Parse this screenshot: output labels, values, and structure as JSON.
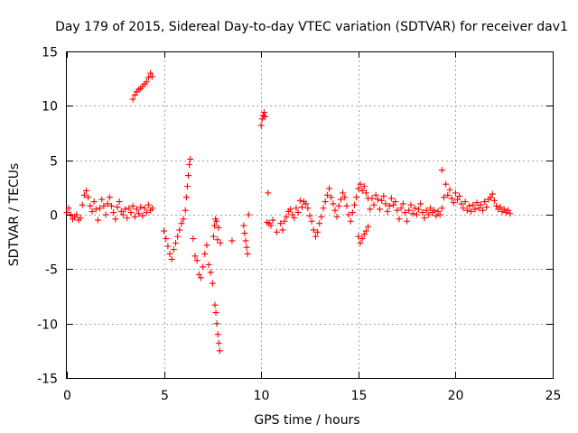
{
  "chart_data": {
    "type": "scatter",
    "title": "Day 179 of 2015, Sidereal Day-to-day VTEC variation (SDTVAR) for receiver dav1",
    "xlabel": "GPS time / hours",
    "ylabel": "SDTVAR / TECUs",
    "xlim": [
      0,
      25
    ],
    "ylim": [
      -15,
      15
    ],
    "xticks": [
      "0",
      "5",
      "10",
      "15",
      "20",
      "25"
    ],
    "yticks": [
      "15",
      "10",
      "5",
      "0",
      "-5",
      "-10",
      "-15"
    ],
    "xtick_values": [
      0,
      5,
      10,
      15,
      20,
      25
    ],
    "ytick_values": [
      15,
      10,
      5,
      0,
      -5,
      -10,
      -15
    ],
    "grid": true,
    "marker": "+",
    "color": "#ff0000",
    "series": [
      {
        "name": "dav1",
        "points": [
          [
            0.0,
            0.2
          ],
          [
            0.1,
            0.6
          ],
          [
            0.2,
            0.0
          ],
          [
            0.3,
            -0.4
          ],
          [
            0.4,
            -0.2
          ],
          [
            0.5,
            0.0
          ],
          [
            0.6,
            -0.5
          ],
          [
            0.7,
            -0.3
          ],
          [
            0.8,
            0.9
          ],
          [
            0.9,
            1.8
          ],
          [
            1.0,
            2.2
          ],
          [
            1.1,
            1.6
          ],
          [
            1.2,
            0.8
          ],
          [
            1.3,
            0.3
          ],
          [
            1.4,
            1.2
          ],
          [
            1.5,
            0.5
          ],
          [
            1.6,
            -0.5
          ],
          [
            1.7,
            0.6
          ],
          [
            1.8,
            1.4
          ],
          [
            1.9,
            0.8
          ],
          [
            2.0,
            0.0
          ],
          [
            2.1,
            1.0
          ],
          [
            2.2,
            1.6
          ],
          [
            2.3,
            0.8
          ],
          [
            2.4,
            0.2
          ],
          [
            2.5,
            -0.4
          ],
          [
            2.6,
            0.7
          ],
          [
            2.7,
            1.2
          ],
          [
            2.8,
            0.3
          ],
          [
            2.9,
            0.0
          ],
          [
            3.0,
            0.5
          ],
          [
            3.1,
            -0.3
          ],
          [
            3.2,
            0.6
          ],
          [
            3.3,
            0.2
          ],
          [
            3.4,
            0.8
          ],
          [
            3.5,
            -0.2
          ],
          [
            3.6,
            0.5
          ],
          [
            3.7,
            0.1
          ],
          [
            3.8,
            0.7
          ],
          [
            3.9,
            -0.1
          ],
          [
            4.0,
            0.6
          ],
          [
            4.1,
            0.2
          ],
          [
            4.2,
            0.9
          ],
          [
            4.3,
            0.4
          ],
          [
            4.4,
            0.6
          ],
          [
            3.4,
            10.6
          ],
          [
            3.5,
            11.0
          ],
          [
            3.6,
            11.3
          ],
          [
            3.7,
            11.5
          ],
          [
            3.8,
            11.6
          ],
          [
            3.9,
            11.8
          ],
          [
            4.0,
            12.0
          ],
          [
            4.1,
            12.2
          ],
          [
            4.2,
            12.6
          ],
          [
            4.3,
            13.0
          ],
          [
            4.4,
            12.7
          ],
          [
            5.0,
            -1.5
          ],
          [
            5.1,
            -2.2
          ],
          [
            5.2,
            -2.9
          ],
          [
            5.3,
            -3.6
          ],
          [
            5.4,
            -4.1
          ],
          [
            5.5,
            -3.2
          ],
          [
            5.6,
            -2.6
          ],
          [
            5.7,
            -2.0
          ],
          [
            5.8,
            -1.4
          ],
          [
            5.9,
            -0.8
          ],
          [
            6.0,
            -0.4
          ],
          [
            6.1,
            0.4
          ],
          [
            6.15,
            1.6
          ],
          [
            6.2,
            2.6
          ],
          [
            6.25,
            3.6
          ],
          [
            6.3,
            4.6
          ],
          [
            6.35,
            5.1
          ],
          [
            6.5,
            -2.2
          ],
          [
            6.6,
            -3.8
          ],
          [
            6.7,
            -4.2
          ],
          [
            6.8,
            -5.5
          ],
          [
            6.9,
            -5.8
          ],
          [
            7.0,
            -4.8
          ],
          [
            7.1,
            -3.6
          ],
          [
            7.2,
            -2.8
          ],
          [
            7.3,
            -4.6
          ],
          [
            7.4,
            -5.3
          ],
          [
            7.5,
            -6.3
          ],
          [
            7.55,
            -2.0
          ],
          [
            7.6,
            -1.0
          ],
          [
            7.65,
            -0.4
          ],
          [
            7.7,
            -0.6
          ],
          [
            7.75,
            -2.3
          ],
          [
            7.8,
            -1.2
          ],
          [
            7.9,
            -2.6
          ],
          [
            7.62,
            -8.3
          ],
          [
            7.67,
            -9.0
          ],
          [
            7.72,
            -10.0
          ],
          [
            7.77,
            -11.0
          ],
          [
            7.82,
            -11.8
          ],
          [
            7.87,
            -12.5
          ],
          [
            8.5,
            -2.4
          ],
          [
            9.1,
            -1.0
          ],
          [
            9.15,
            -1.7
          ],
          [
            9.2,
            -2.4
          ],
          [
            9.25,
            -3.0
          ],
          [
            9.3,
            -3.6
          ],
          [
            9.35,
            0.0
          ],
          [
            10.0,
            8.2
          ],
          [
            10.05,
            8.8
          ],
          [
            10.1,
            9.1
          ],
          [
            10.15,
            9.4
          ],
          [
            10.2,
            9.0
          ],
          [
            10.3,
            -0.7
          ],
          [
            10.35,
            2.0
          ],
          [
            10.4,
            -0.8
          ],
          [
            10.5,
            -1.0
          ],
          [
            10.6,
            -0.5
          ],
          [
            10.8,
            -1.6
          ],
          [
            11.0,
            -0.8
          ],
          [
            11.1,
            -1.4
          ],
          [
            11.2,
            -0.6
          ],
          [
            11.3,
            -0.2
          ],
          [
            11.4,
            0.3
          ],
          [
            11.5,
            0.5
          ],
          [
            11.6,
            0.0
          ],
          [
            11.7,
            -0.3
          ],
          [
            11.8,
            0.6
          ],
          [
            11.9,
            0.2
          ],
          [
            12.0,
            1.3
          ],
          [
            12.1,
            0.7
          ],
          [
            12.2,
            1.2
          ],
          [
            12.3,
            1.0
          ],
          [
            12.4,
            0.6
          ],
          [
            12.5,
            -0.1
          ],
          [
            12.6,
            -0.6
          ],
          [
            12.7,
            -1.4
          ],
          [
            12.8,
            -2.0
          ],
          [
            12.9,
            -1.6
          ],
          [
            13.0,
            -0.8
          ],
          [
            13.1,
            -0.2
          ],
          [
            13.2,
            0.6
          ],
          [
            13.3,
            1.2
          ],
          [
            13.4,
            1.8
          ],
          [
            13.5,
            2.4
          ],
          [
            13.6,
            1.6
          ],
          [
            13.7,
            1.0
          ],
          [
            13.8,
            0.4
          ],
          [
            13.9,
            -0.2
          ],
          [
            14.0,
            0.8
          ],
          [
            14.1,
            1.4
          ],
          [
            14.2,
            2.0
          ],
          [
            14.3,
            1.6
          ],
          [
            14.4,
            0.8
          ],
          [
            14.5,
            0.0
          ],
          [
            14.6,
            -0.6
          ],
          [
            14.7,
            0.2
          ],
          [
            14.8,
            0.9
          ],
          [
            14.9,
            1.6
          ],
          [
            15.0,
            2.4
          ],
          [
            15.1,
            2.8
          ],
          [
            15.2,
            2.2
          ],
          [
            15.3,
            2.6
          ],
          [
            15.4,
            2.0
          ],
          [
            15.5,
            1.5
          ],
          [
            15.0,
            -2.0
          ],
          [
            15.1,
            -2.6
          ],
          [
            15.2,
            -2.2
          ],
          [
            15.3,
            -1.8
          ],
          [
            15.4,
            -1.5
          ],
          [
            15.5,
            -1.1
          ],
          [
            15.6,
            0.5
          ],
          [
            15.7,
            1.5
          ],
          [
            15.8,
            0.9
          ],
          [
            15.9,
            1.8
          ],
          [
            16.0,
            1.4
          ],
          [
            16.1,
            0.5
          ],
          [
            16.2,
            1.3
          ],
          [
            16.3,
            1.7
          ],
          [
            16.4,
            1.0
          ],
          [
            16.5,
            0.3
          ],
          [
            16.6,
            0.8
          ],
          [
            16.7,
            1.5
          ],
          [
            16.8,
            0.9
          ],
          [
            16.9,
            1.2
          ],
          [
            17.0,
            0.4
          ],
          [
            17.1,
            -0.4
          ],
          [
            17.2,
            0.6
          ],
          [
            17.3,
            1.0
          ],
          [
            17.4,
            0.2
          ],
          [
            17.5,
            -0.6
          ],
          [
            17.6,
            0.4
          ],
          [
            17.7,
            0.9
          ],
          [
            17.8,
            0.1
          ],
          [
            17.9,
            0.6
          ],
          [
            18.0,
            0.0
          ],
          [
            18.1,
            0.5
          ],
          [
            18.2,
            1.0
          ],
          [
            18.3,
            0.2
          ],
          [
            18.4,
            -0.3
          ],
          [
            18.5,
            0.4
          ],
          [
            18.6,
            0.0
          ],
          [
            18.7,
            0.6
          ],
          [
            18.8,
            0.2
          ],
          [
            18.9,
            0.4
          ],
          [
            19.0,
            -0.1
          ],
          [
            19.1,
            0.3
          ],
          [
            19.2,
            0.0
          ],
          [
            19.3,
            0.6
          ],
          [
            19.4,
            1.6
          ],
          [
            19.5,
            2.8
          ],
          [
            19.6,
            1.8
          ],
          [
            19.7,
            2.3
          ],
          [
            19.8,
            1.5
          ],
          [
            19.9,
            1.1
          ],
          [
            20.0,
            2.0
          ],
          [
            20.1,
            1.4
          ],
          [
            20.2,
            1.7
          ],
          [
            20.3,
            1.0
          ],
          [
            20.4,
            0.6
          ],
          [
            20.5,
            1.2
          ],
          [
            20.6,
            0.4
          ],
          [
            20.7,
            0.8
          ],
          [
            20.8,
            0.3
          ],
          [
            20.9,
            0.9
          ],
          [
            21.0,
            0.5
          ],
          [
            21.1,
            1.1
          ],
          [
            21.2,
            0.6
          ],
          [
            21.3,
            0.9
          ],
          [
            21.4,
            0.4
          ],
          [
            21.5,
            1.2
          ],
          [
            21.6,
            0.7
          ],
          [
            21.7,
            1.4
          ],
          [
            21.8,
            1.6
          ],
          [
            21.9,
            1.9
          ],
          [
            22.0,
            1.3
          ],
          [
            22.1,
            0.8
          ],
          [
            22.2,
            0.5
          ],
          [
            22.3,
            0.7
          ],
          [
            22.4,
            0.3
          ],
          [
            22.5,
            0.5
          ],
          [
            22.6,
            0.2
          ],
          [
            22.7,
            0.4
          ],
          [
            22.8,
            0.1
          ],
          [
            19.3,
            4.1
          ]
        ]
      }
    ]
  }
}
